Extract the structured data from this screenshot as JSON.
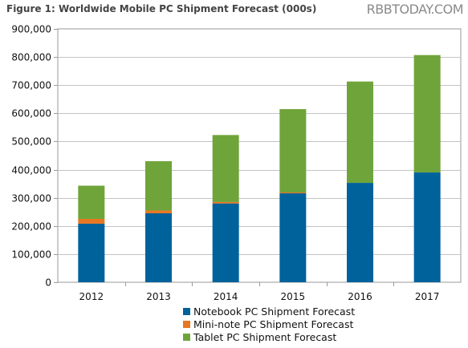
{
  "title": "Figure 1: Worldwide Mobile PC Shipment Forecast (000s)",
  "watermark": "RBBTODAY.COM",
  "chart_data": {
    "type": "bar",
    "stacked": true,
    "categories": [
      "2012",
      "2013",
      "2014",
      "2015",
      "2016",
      "2017"
    ],
    "series": [
      {
        "name": "Notebook PC Shipment Forecast",
        "color": "#00629b",
        "values": [
          208000,
          245000,
          280000,
          316000,
          353000,
          390000
        ]
      },
      {
        "name": "Mini-note PC Shipment Forecast",
        "color": "#e87722",
        "values": [
          17000,
          10000,
          5000,
          3000,
          0,
          0
        ]
      },
      {
        "name": "Tablet PC Shipment Forecast",
        "color": "#6fa43a",
        "values": [
          118000,
          175000,
          238000,
          296000,
          360000,
          417000
        ]
      }
    ],
    "ylim": [
      0,
      900000
    ],
    "yticks": [
      "0",
      "100,000",
      "200,000",
      "300,000",
      "400,000",
      "500,000",
      "600,000",
      "700,000",
      "800,000",
      "900,000"
    ],
    "grid": true,
    "legend_position": "bottom"
  }
}
